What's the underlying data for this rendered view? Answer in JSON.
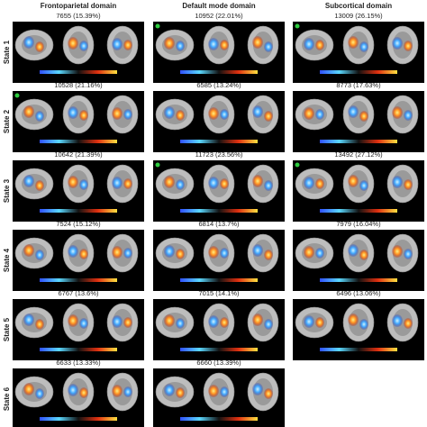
{
  "columns": [
    "Frontoparietal domain",
    "Default mode domain",
    "Subcortical domain"
  ],
  "rows": [
    {
      "label": "State 1",
      "cells": [
        "7655 (15.39%)",
        "10952 (22.01%)",
        "13009 (26.15%)"
      ]
    },
    {
      "label": "State 2",
      "cells": [
        "10528 (21.16%)",
        "6585 (13.24%)",
        "8773 (17.63%)"
      ]
    },
    {
      "label": "State 3",
      "cells": [
        "10642 (21.39%)",
        "11723 (23.56%)",
        "13492 (27.12%)"
      ]
    },
    {
      "label": "State 4",
      "cells": [
        "7524 (15.12%)",
        "6814 (13.7%)",
        "7979 (16.04%)"
      ]
    },
    {
      "label": "State 5",
      "cells": [
        "6767 (13.6%)",
        "7015 (14.1%)",
        "6496 (13.06%)"
      ]
    },
    {
      "label": "State 6",
      "cells": [
        "6633 (13.33%)",
        "6660 (13.39%)"
      ]
    }
  ]
}
